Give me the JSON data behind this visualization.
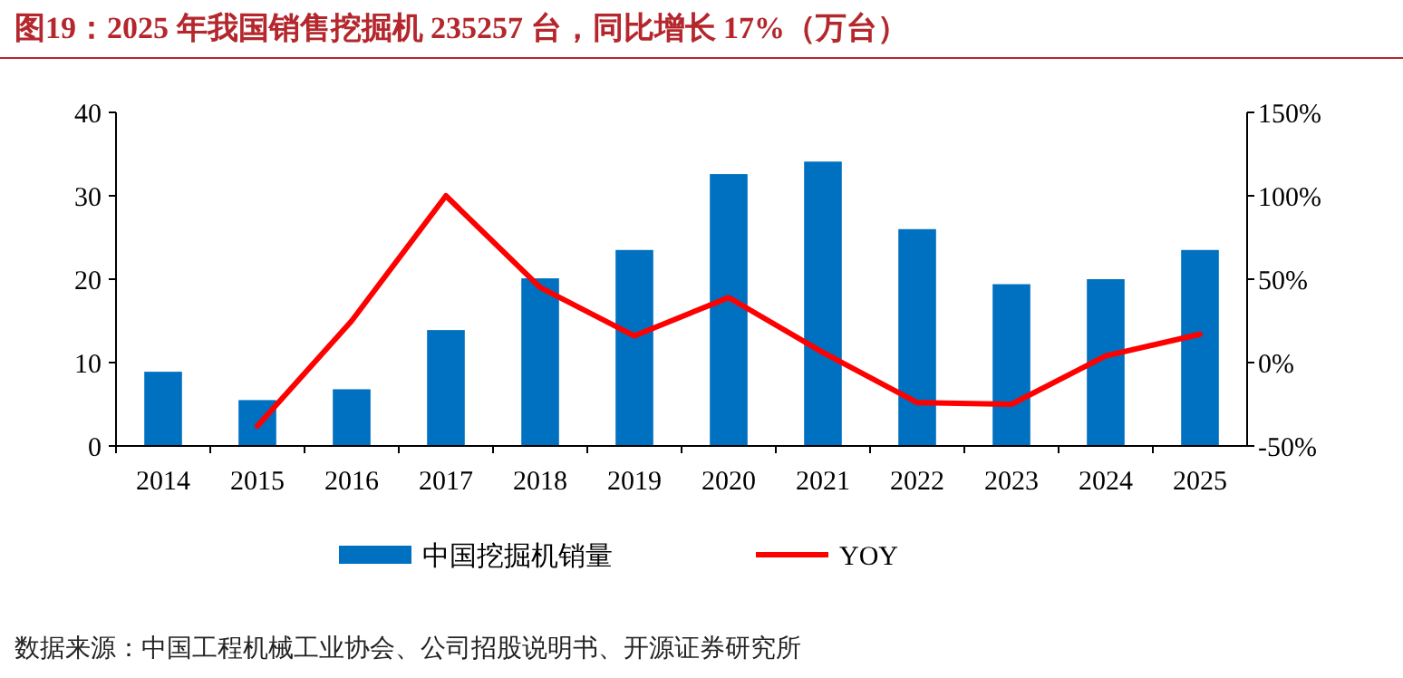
{
  "chart_data": {
    "type": "bar",
    "title": "图19：2025 年我国销售挖掘机 235257 台，同比增长 17%（万台）",
    "categories": [
      "2014",
      "2015",
      "2016",
      "2017",
      "2018",
      "2019",
      "2020",
      "2021",
      "2022",
      "2023",
      "2024",
      "2025"
    ],
    "series": [
      {
        "name": "中国挖掘机销量",
        "color": "#0070c0",
        "values": [
          8.9,
          5.5,
          6.8,
          13.9,
          20.1,
          23.5,
          32.6,
          34.1,
          26.0,
          19.4,
          20.0,
          23.5
        ]
      },
      {
        "name": "YOY",
        "type": "line",
        "axis": "y2",
        "color": "#ff0000",
        "values": [
          null,
          -38,
          25,
          100,
          45,
          16,
          39,
          6,
          -24,
          -25,
          4,
          17
        ]
      }
    ],
    "ylim": [
      0,
      40
    ],
    "yticks": [
      0,
      10,
      20,
      30,
      40
    ],
    "y2lim": [
      -50,
      150
    ],
    "y2ticks": [
      {
        "value": -50,
        "label": "-50%"
      },
      {
        "value": 0,
        "label": "0%"
      },
      {
        "value": 50,
        "label": "50%"
      },
      {
        "value": 100,
        "label": "100%"
      },
      {
        "value": 150,
        "label": "150%"
      }
    ],
    "legend": "bottom",
    "grid": false,
    "marker": "none",
    "line_style": "solid",
    "annotations": [
      "数据来源：中国工程机械工业协会、公司招股说明书、开源证券研究所"
    ]
  }
}
